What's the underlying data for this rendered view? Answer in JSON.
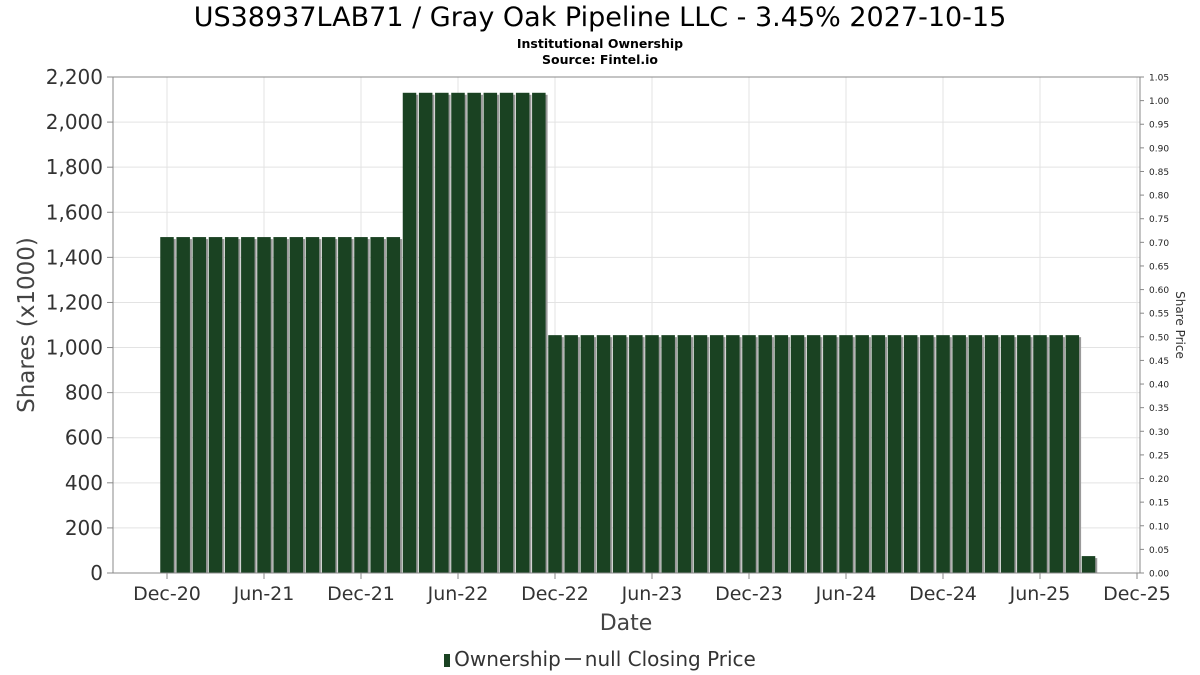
{
  "title": "US38937LAB71 / Gray Oak Pipeline LLC - 3.45% 2027-10-15",
  "subtitle": "Institutional Ownership",
  "source": "Source: Fintel.io",
  "legend": {
    "ownership_label": "Ownership",
    "price_label": "null Closing Price"
  },
  "colors": {
    "bar_fill": "#1a4222",
    "bar_shadow": "#9a9a9a",
    "grid": "#e3e3e3",
    "axis": "#888888"
  },
  "chart_data": {
    "type": "bar",
    "xlabel": "Date",
    "ylabel": "Shares (x1000)",
    "y2label": "Share Price",
    "ylim": [
      0,
      2200
    ],
    "y2lim": [
      0,
      1.05
    ],
    "yticks": [
      "0",
      "200",
      "400",
      "600",
      "800",
      "1,000",
      "1,200",
      "1,400",
      "1,600",
      "1,800",
      "2,000",
      "2,200"
    ],
    "y2ticks": [
      "0.00",
      "0.05",
      "0.10",
      "0.15",
      "0.20",
      "0.25",
      "0.30",
      "0.35",
      "0.40",
      "0.45",
      "0.50",
      "0.55",
      "0.60",
      "0.65",
      "0.70",
      "0.75",
      "0.80",
      "0.85",
      "0.90",
      "0.95",
      "1.00",
      "1.05"
    ],
    "xticks": [
      "Dec-20",
      "Jun-21",
      "Dec-21",
      "Jun-22",
      "Dec-22",
      "Jun-23",
      "Dec-23",
      "Jun-24",
      "Dec-24",
      "Jun-25",
      "Dec-25"
    ],
    "grid": true,
    "legend_position": "bottom-center",
    "series": [
      {
        "name": "Ownership",
        "segments": [
          {
            "start": "Dec-20",
            "count": 15,
            "value": 1490
          },
          {
            "start": "Mar-22",
            "count": 9,
            "value": 2130
          },
          {
            "start": "Dec-22",
            "count": 33,
            "value": 1055
          },
          {
            "start": "Sep-25",
            "count": 1,
            "value": 75
          }
        ]
      }
    ]
  }
}
